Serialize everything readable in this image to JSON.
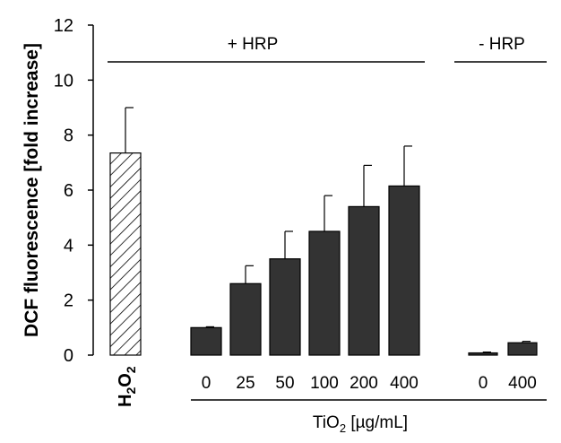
{
  "chart_data": {
    "type": "bar",
    "ylabel": "DCF fluorescence [fold increase]",
    "ylim": [
      0,
      12
    ],
    "yticks": [
      0,
      2,
      4,
      6,
      8,
      10,
      12
    ],
    "grid": false,
    "categories": [
      "H2O2",
      "0",
      "25",
      "50",
      "100",
      "200",
      "400",
      "0",
      "400"
    ],
    "values": [
      7.35,
      1.0,
      2.6,
      3.5,
      4.5,
      5.4,
      6.15,
      0.08,
      0.45
    ],
    "errors": [
      1.65,
      0.03,
      0.65,
      1.0,
      1.3,
      1.5,
      1.45,
      0.03,
      0.05
    ],
    "patterns": [
      "hatched",
      "solid",
      "solid",
      "solid",
      "solid",
      "solid",
      "solid",
      "solid",
      "solid"
    ],
    "colors": {
      "solid": "#333333",
      "hatched_fill": "#ffffff",
      "outline": "#000000"
    },
    "group_labels": [
      "+ HRP",
      "- HRP"
    ],
    "h2o2_label": {
      "main": "H",
      "sub1": "2",
      "mid": "O",
      "sub2": "2"
    },
    "xlabel": {
      "prefix": "TiO",
      "sub": "2",
      "suffix": " [µg/mL]"
    }
  }
}
